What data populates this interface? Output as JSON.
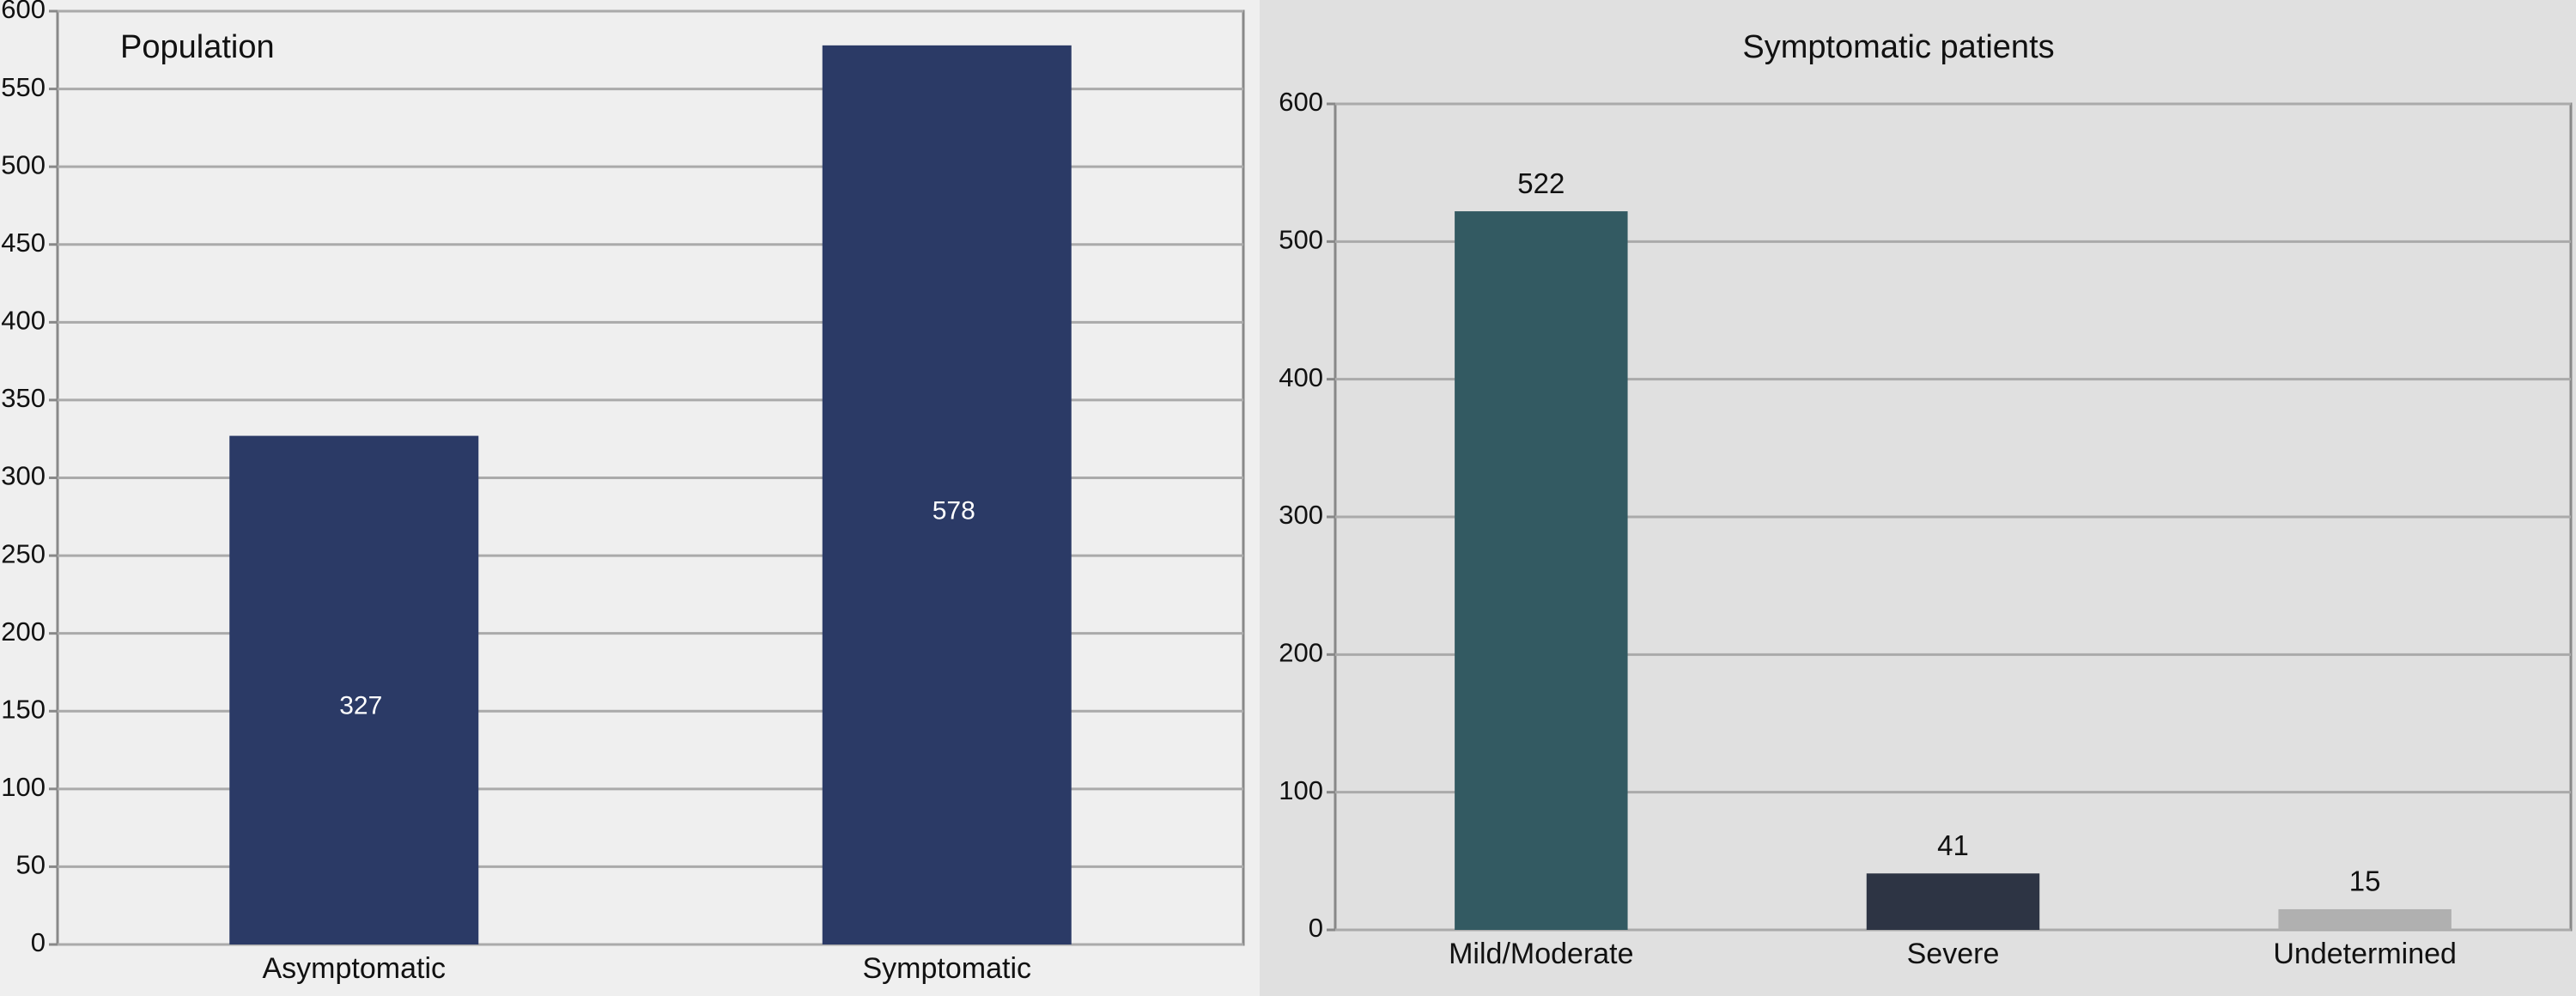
{
  "chart_data": [
    {
      "type": "bar",
      "title": "Population",
      "categories": [
        "Asymptomatic",
        "Symptomatic"
      ],
      "values": [
        327,
        578
      ],
      "colors": [
        "#2b3a66",
        "#2b3a66"
      ],
      "ylim": [
        0,
        600
      ],
      "yticks": [
        0,
        50,
        100,
        150,
        200,
        250,
        300,
        350,
        400,
        450,
        500,
        550,
        600
      ],
      "grid": true
    },
    {
      "type": "bar",
      "title": "Symptomatic patients",
      "categories": [
        "Mild/Moderate",
        "Severe",
        "Undetermined"
      ],
      "values": [
        522,
        41,
        15
      ],
      "colors": [
        "#335a62",
        "#2d3444",
        "#b0b0b0"
      ],
      "ylim": [
        0,
        600
      ],
      "yticks": [
        0,
        100,
        200,
        300,
        400,
        500,
        600
      ],
      "grid": true
    }
  ]
}
